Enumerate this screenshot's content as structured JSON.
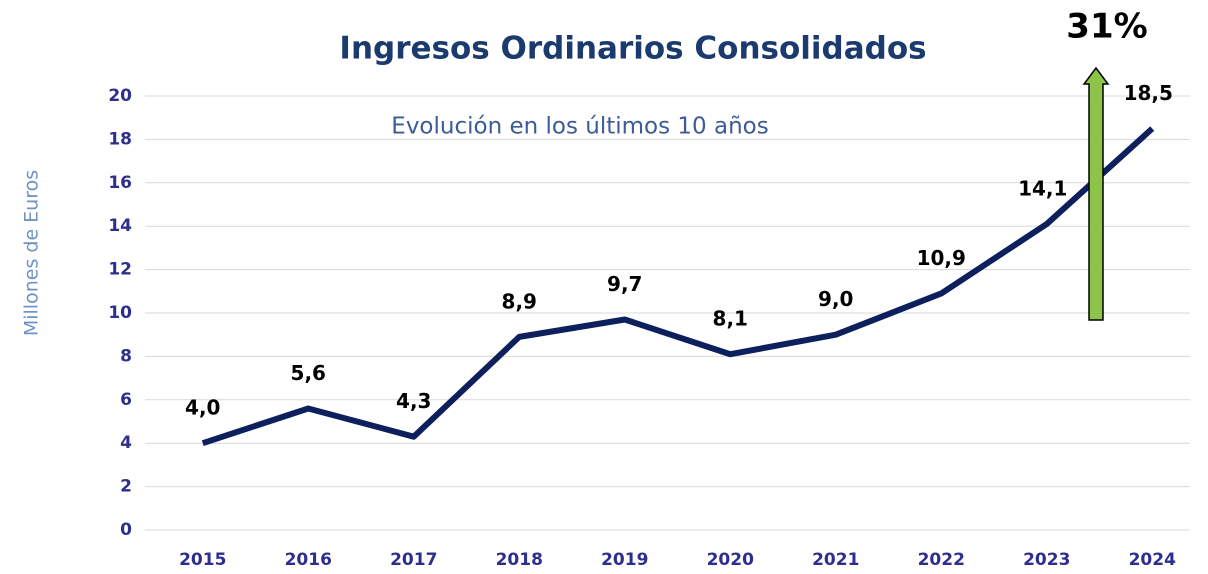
{
  "chart_data": {
    "type": "line",
    "title": "Ingresos Ordinarios Consolidados",
    "subtitle": "Evolución en los últimos 10 años",
    "y_label": "Millones de Euros",
    "annotation": "31%",
    "categories": [
      "2015",
      "2016",
      "2017",
      "2018",
      "2019",
      "2020",
      "2021",
      "2022",
      "2023",
      "2024"
    ],
    "values": [
      4.0,
      5.6,
      4.3,
      8.9,
      9.7,
      8.1,
      9.0,
      10.9,
      14.1,
      18.5
    ],
    "value_labels": [
      "4,0",
      "5,6",
      "4,3",
      "8,9",
      "9,7",
      "8,1",
      "9,0",
      "10,9",
      "14,1",
      "18,5"
    ],
    "color": "#0d1f5c",
    "ylim": [
      0,
      20
    ],
    "yticks": [
      0,
      2,
      4,
      6,
      8,
      10,
      12,
      14,
      16,
      18,
      20
    ],
    "grid": true
  }
}
